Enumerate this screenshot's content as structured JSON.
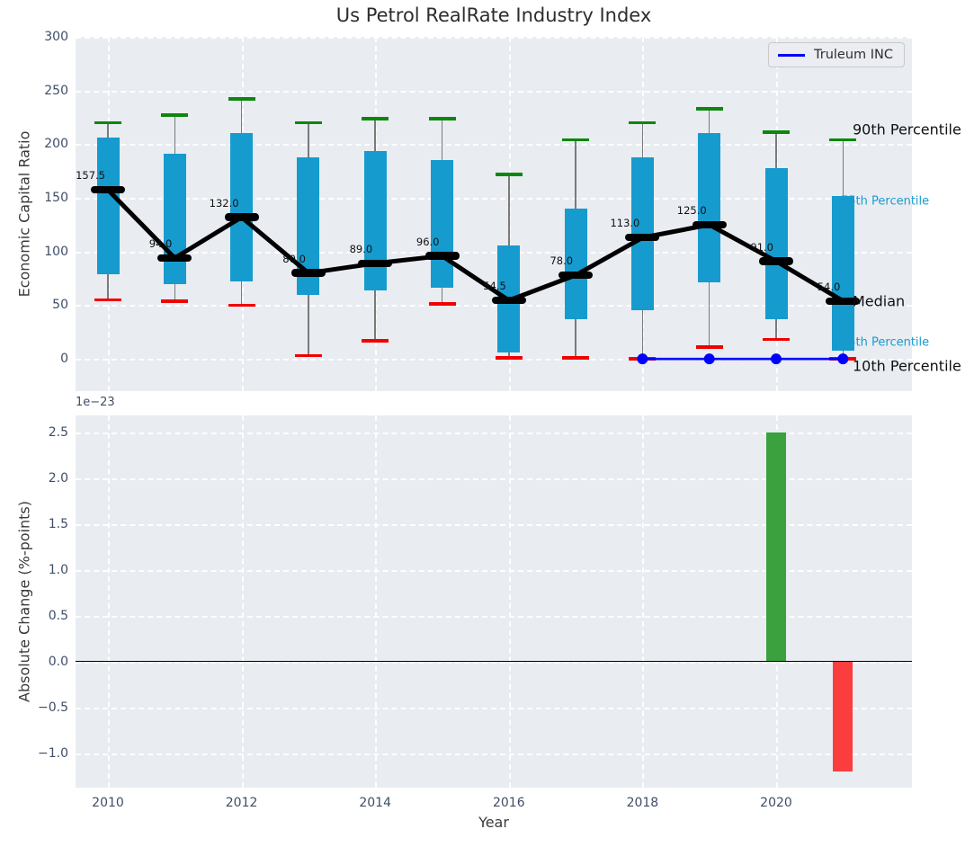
{
  "title": "Us Petrol RealRate Industry Index",
  "legend": {
    "label": "Truleum INC",
    "line_color": "#0000ff"
  },
  "top_chart": {
    "ylabel": "Economic Capital Ratio",
    "ytick_labels": [
      "300",
      "250",
      "200",
      "150",
      "100",
      "50",
      "0"
    ]
  },
  "bottom_chart": {
    "ylabel": "Absolute Change (%-points)",
    "xlabel": "Year",
    "scale_offset": "1e−23",
    "ytick_labels": [
      "2.5",
      "2.0",
      "1.5",
      "1.0",
      "0.5",
      "0.0",
      "−0.5",
      "−1.0"
    ],
    "xtick_labels": [
      "2010",
      "2012",
      "2014",
      "2016",
      "2018",
      "2020"
    ]
  },
  "colors": {
    "axes_bg": "#e9ecf1",
    "iqr_bar": "#169bce",
    "whisker": "#7a7a7a",
    "cap_90th": "#0d870d",
    "cap_10th": "#f20000",
    "median": "#000000",
    "company_line": "#0000ff",
    "change_up": "#3ba13f",
    "change_down": "#fa3d3d",
    "tick_text": "#3f4e68",
    "percentile_label_cyan": "#189bce"
  },
  "chart_data": [
    {
      "type": "boxwhisker_candlestick",
      "title": "Us Petrol RealRate Industry Index",
      "ylabel": "Economic Capital Ratio",
      "ylim": [
        -30,
        300
      ],
      "yticks": [
        300,
        250,
        200,
        150,
        100,
        50,
        0
      ],
      "xticks": [
        2010,
        2012,
        2014,
        2016,
        2018,
        2020
      ],
      "xlim": [
        2009.5,
        2022
      ],
      "grid": "white dashed on gray background",
      "legend_position": "upper right",
      "years": [
        2010,
        2011,
        2012,
        2013,
        2014,
        2015,
        2016,
        2017,
        2018,
        2019,
        2020,
        2021
      ],
      "p90": [
        220,
        227,
        242,
        220,
        224,
        224,
        172,
        204,
        220,
        233,
        211,
        204
      ],
      "p75": [
        206,
        191,
        210,
        188,
        194,
        185,
        106,
        140,
        188,
        210,
        178,
        152
      ],
      "median": [
        157.5,
        94,
        132,
        80,
        89,
        96,
        54.5,
        78,
        113,
        125,
        91,
        54
      ],
      "p25": [
        79,
        70,
        72,
        60,
        64,
        66,
        6,
        37,
        45,
        71,
        37,
        8
      ],
      "p10": [
        55,
        54,
        50,
        3,
        17,
        51,
        1,
        1,
        0,
        11,
        18,
        0
      ],
      "median_labels": [
        "157.5",
        "94.0",
        "132.0",
        "80.0",
        "89.0",
        "96.0",
        "54.5",
        "78.0",
        "113.0",
        "125.0",
        "91.0",
        "54.0"
      ],
      "series": [
        {
          "name": "Truleum INC",
          "x": [
            2018,
            2019,
            2020,
            2021
          ],
          "y": [
            0,
            0,
            0,
            0
          ],
          "color": "#0000ff",
          "marker": "circle"
        }
      ],
      "annotations": [
        {
          "text": "90th Percentile",
          "value": 204,
          "color": "#111111",
          "size": 16
        },
        {
          "text": "75th Percentile",
          "value": 152,
          "color": "#189bce",
          "size": 13
        },
        {
          "text": "Median",
          "value": 54,
          "color": "#111111",
          "size": 16
        },
        {
          "text": "25th Percentile",
          "value": 8,
          "color": "#189bce",
          "size": 13
        },
        {
          "text": "10th Percentile",
          "value": 0,
          "color": "#111111",
          "size": 16
        }
      ]
    },
    {
      "type": "bar",
      "ylabel": "Absolute Change (%-points)",
      "xlabel": "Year",
      "scale_factor": "1e-23",
      "ylim": [
        -1.38,
        2.68
      ],
      "yticks": [
        2.5,
        2.0,
        1.5,
        1.0,
        0.5,
        0.0,
        -0.5,
        -1.0
      ],
      "xticks": [
        2010,
        2012,
        2014,
        2016,
        2018,
        2020
      ],
      "xlim": [
        2009.5,
        2022
      ],
      "zero_line": true,
      "bars": [
        {
          "year": 2020,
          "value_x1e23": 2.5,
          "color": "#3ba13f"
        },
        {
          "year": 2021,
          "value_x1e23": -1.2,
          "color": "#fa3d3d"
        }
      ]
    }
  ]
}
